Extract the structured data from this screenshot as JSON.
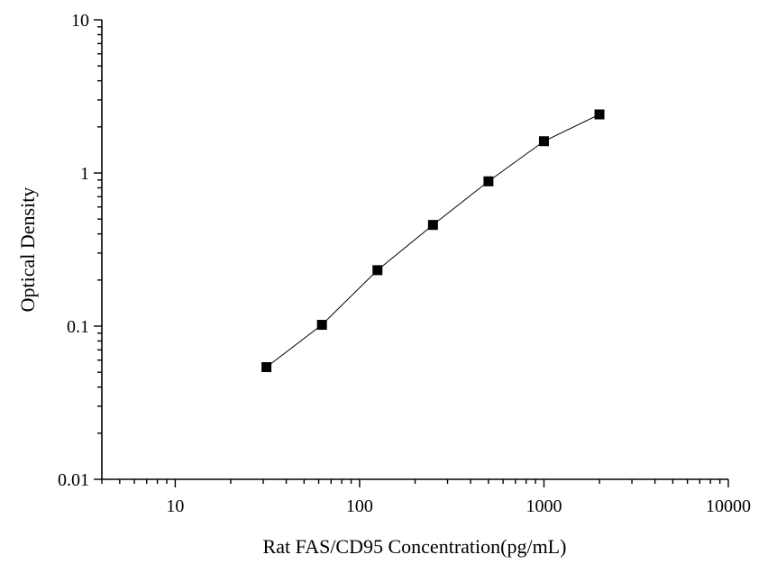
{
  "chart_data": {
    "type": "scatter",
    "title": "",
    "xlabel": "Rat FAS/CD95 Concentration(pg/mL)",
    "ylabel": "Optical Density",
    "x_scale": "log",
    "y_scale": "log",
    "xlim": [
      4,
      10000
    ],
    "ylim": [
      0.01,
      10
    ],
    "x_ticks": [
      10,
      100,
      1000,
      10000
    ],
    "x_tick_labels": [
      "10",
      "100",
      "1000",
      "10000"
    ],
    "y_ticks": [
      0.01,
      0.1,
      1,
      10
    ],
    "y_tick_labels": [
      "0.01",
      "0.1",
      "1",
      "10"
    ],
    "grid": false,
    "legend": "none",
    "series": [
      {
        "marker": "square",
        "connected": true,
        "color": "#000000",
        "x": [
          31.25,
          62.5,
          125,
          250,
          500,
          1000,
          2000
        ],
        "y": [
          0.054,
          0.102,
          0.232,
          0.458,
          0.882,
          1.612,
          2.412
        ]
      }
    ]
  }
}
